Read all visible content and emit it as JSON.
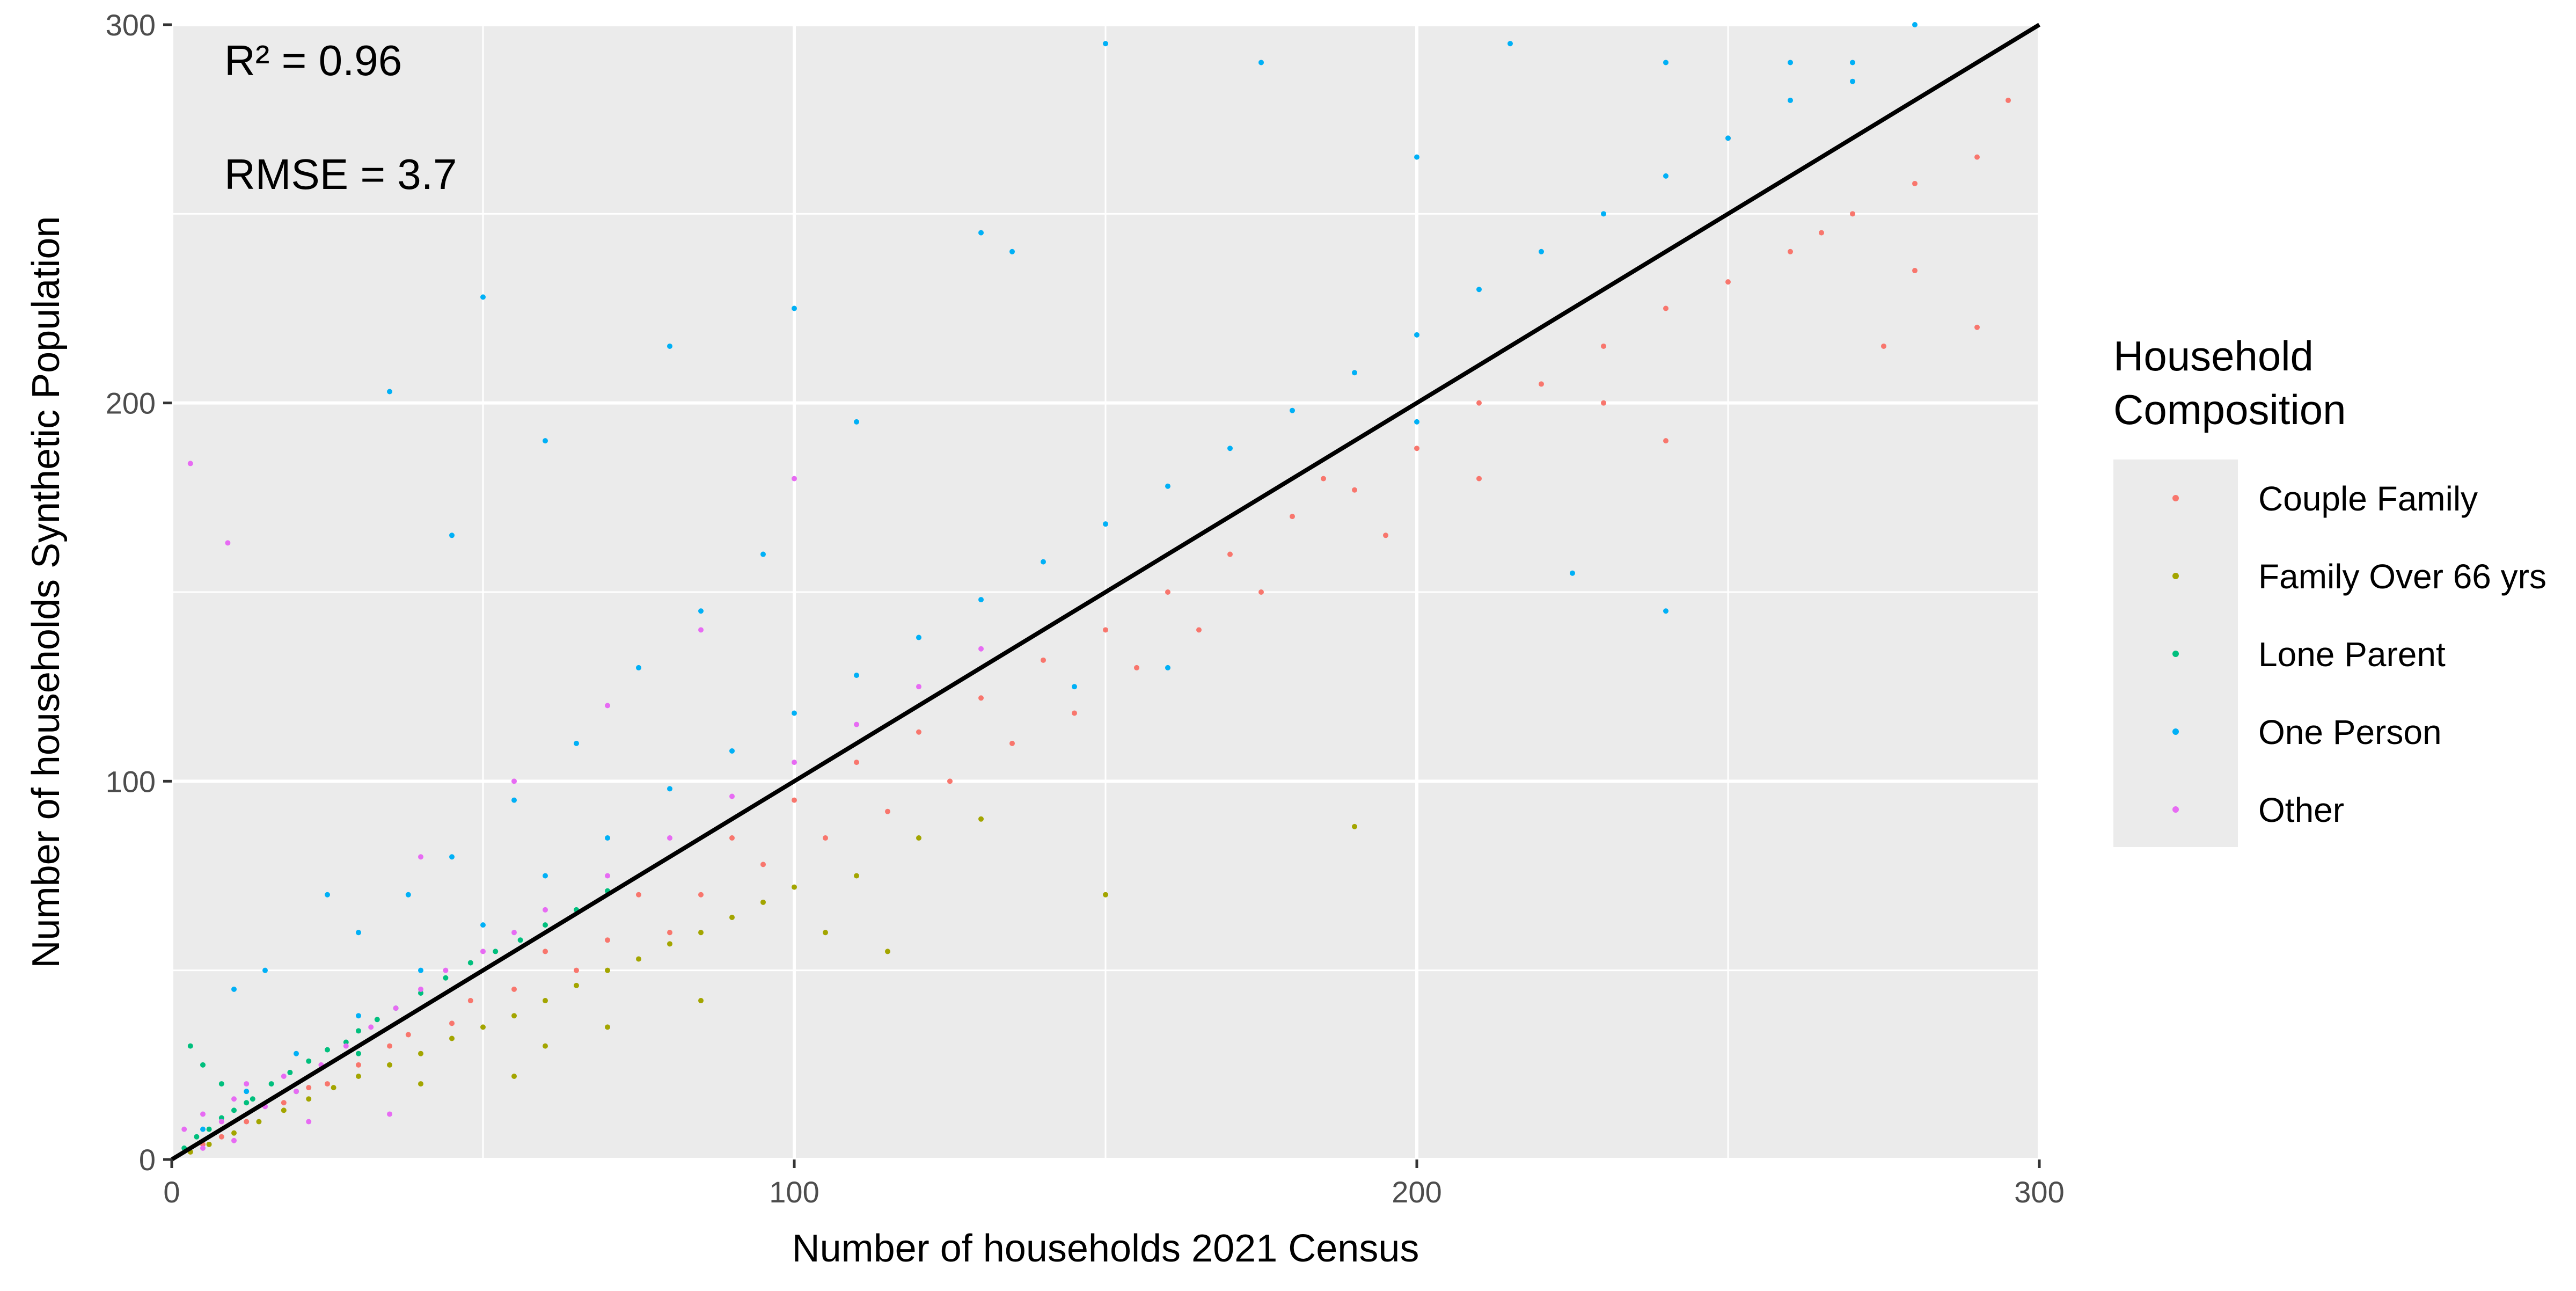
{
  "chart_data": {
    "type": "scatter",
    "xlabel": "Number of households 2021 Census",
    "ylabel": "Number of households Synthetic Population",
    "xlim": [
      0,
      300
    ],
    "ylim": [
      0,
      300
    ],
    "x_ticks": [
      0,
      100,
      200,
      300
    ],
    "y_ticks": [
      0,
      100,
      200,
      300
    ],
    "grid": true,
    "annotations": [
      "R² = 0.96",
      "RMSE = 3.7"
    ],
    "reference_line": {
      "from": [
        0,
        0
      ],
      "to": [
        300,
        300
      ],
      "color": "#000000"
    },
    "legend": {
      "title_lines": [
        "Household",
        "Composition"
      ],
      "position": "right"
    },
    "series": [
      {
        "name": "Couple Family",
        "color": "#F8766D",
        "points": [
          [
            5,
            4
          ],
          [
            12,
            10
          ],
          [
            22,
            19
          ],
          [
            35,
            30
          ],
          [
            48,
            42
          ],
          [
            60,
            55
          ],
          [
            75,
            70
          ],
          [
            90,
            85
          ],
          [
            100,
            95
          ],
          [
            110,
            105
          ],
          [
            120,
            113
          ],
          [
            130,
            122
          ],
          [
            140,
            132
          ],
          [
            150,
            140
          ],
          [
            160,
            150
          ],
          [
            170,
            160
          ],
          [
            180,
            170
          ],
          [
            190,
            177
          ],
          [
            200,
            188
          ],
          [
            210,
            200
          ],
          [
            220,
            205
          ],
          [
            230,
            215
          ],
          [
            240,
            225
          ],
          [
            250,
            232
          ],
          [
            260,
            240
          ],
          [
            270,
            250
          ],
          [
            280,
            258
          ],
          [
            290,
            265
          ],
          [
            295,
            280
          ],
          [
            290,
            220
          ],
          [
            280,
            235
          ],
          [
            250,
            270
          ],
          [
            265,
            245
          ],
          [
            275,
            215
          ],
          [
            240,
            190
          ],
          [
            230,
            200
          ],
          [
            210,
            180
          ],
          [
            195,
            165
          ],
          [
            185,
            180
          ],
          [
            175,
            150
          ],
          [
            165,
            140
          ],
          [
            155,
            130
          ],
          [
            145,
            118
          ],
          [
            135,
            110
          ],
          [
            125,
            100
          ],
          [
            115,
            92
          ],
          [
            105,
            85
          ],
          [
            95,
            78
          ],
          [
            85,
            70
          ],
          [
            80,
            60
          ],
          [
            70,
            58
          ],
          [
            65,
            50
          ],
          [
            55,
            45
          ],
          [
            45,
            36
          ],
          [
            38,
            33
          ],
          [
            30,
            25
          ],
          [
            25,
            20
          ],
          [
            18,
            15
          ],
          [
            8,
            6
          ],
          [
            3,
            2
          ]
        ]
      },
      {
        "name": "Family Over 66 yrs",
        "color": "#A3A500",
        "points": [
          [
            3,
            2
          ],
          [
            6,
            4
          ],
          [
            10,
            7
          ],
          [
            14,
            10
          ],
          [
            18,
            13
          ],
          [
            22,
            16
          ],
          [
            26,
            19
          ],
          [
            30,
            22
          ],
          [
            35,
            25
          ],
          [
            40,
            28
          ],
          [
            45,
            32
          ],
          [
            50,
            35
          ],
          [
            55,
            38
          ],
          [
            60,
            42
          ],
          [
            65,
            46
          ],
          [
            70,
            50
          ],
          [
            75,
            53
          ],
          [
            80,
            57
          ],
          [
            85,
            60
          ],
          [
            90,
            64
          ],
          [
            95,
            68
          ],
          [
            100,
            72
          ],
          [
            110,
            75
          ],
          [
            120,
            85
          ],
          [
            130,
            90
          ],
          [
            150,
            70
          ],
          [
            190,
            88
          ],
          [
            40,
            20
          ],
          [
            55,
            22
          ],
          [
            70,
            35
          ],
          [
            85,
            42
          ],
          [
            105,
            60
          ],
          [
            115,
            55
          ],
          [
            60,
            30
          ]
        ]
      },
      {
        "name": "Lone Parent",
        "color": "#00BF7D",
        "points": [
          [
            2,
            3
          ],
          [
            4,
            6
          ],
          [
            6,
            8
          ],
          [
            8,
            11
          ],
          [
            10,
            13
          ],
          [
            13,
            16
          ],
          [
            16,
            20
          ],
          [
            19,
            23
          ],
          [
            22,
            26
          ],
          [
            25,
            29
          ],
          [
            28,
            31
          ],
          [
            30,
            34
          ],
          [
            33,
            37
          ],
          [
            36,
            40
          ],
          [
            40,
            44
          ],
          [
            44,
            48
          ],
          [
            48,
            52
          ],
          [
            52,
            55
          ],
          [
            56,
            58
          ],
          [
            60,
            62
          ],
          [
            65,
            66
          ],
          [
            70,
            71
          ],
          [
            3,
            30
          ],
          [
            5,
            25
          ],
          [
            8,
            20
          ],
          [
            12,
            15
          ],
          [
            20,
            18
          ],
          [
            30,
            28
          ]
        ]
      },
      {
        "name": "One Person",
        "color": "#00B0F6",
        "points": [
          [
            5,
            8
          ],
          [
            12,
            18
          ],
          [
            20,
            28
          ],
          [
            30,
            38
          ],
          [
            40,
            50
          ],
          [
            50,
            62
          ],
          [
            60,
            75
          ],
          [
            70,
            85
          ],
          [
            80,
            98
          ],
          [
            90,
            108
          ],
          [
            100,
            118
          ],
          [
            110,
            128
          ],
          [
            120,
            138
          ],
          [
            130,
            148
          ],
          [
            140,
            158
          ],
          [
            150,
            168
          ],
          [
            160,
            178
          ],
          [
            170,
            188
          ],
          [
            180,
            198
          ],
          [
            190,
            208
          ],
          [
            200,
            218
          ],
          [
            210,
            230
          ],
          [
            220,
            240
          ],
          [
            230,
            250
          ],
          [
            240,
            260
          ],
          [
            250,
            270
          ],
          [
            260,
            280
          ],
          [
            270,
            290
          ],
          [
            280,
            300
          ],
          [
            35,
            203
          ],
          [
            50,
            228
          ],
          [
            45,
            165
          ],
          [
            60,
            190
          ],
          [
            80,
            215
          ],
          [
            100,
            225
          ],
          [
            130,
            245
          ],
          [
            150,
            295
          ],
          [
            175,
            290
          ],
          [
            200,
            265
          ],
          [
            215,
            295
          ],
          [
            240,
            290
          ],
          [
            260,
            290
          ],
          [
            270,
            285
          ],
          [
            145,
            125
          ],
          [
            160,
            130
          ],
          [
            200,
            195
          ],
          [
            225,
            155
          ],
          [
            240,
            145
          ],
          [
            30,
            60
          ],
          [
            25,
            70
          ],
          [
            15,
            50
          ],
          [
            10,
            45
          ],
          [
            135,
            240
          ],
          [
            110,
            195
          ],
          [
            95,
            160
          ],
          [
            85,
            145
          ],
          [
            75,
            130
          ],
          [
            65,
            110
          ],
          [
            55,
            95
          ],
          [
            45,
            80
          ],
          [
            38,
            70
          ]
        ]
      },
      {
        "name": "Other",
        "color": "#E76BF3",
        "points": [
          [
            2,
            8
          ],
          [
            5,
            12
          ],
          [
            8,
            10
          ],
          [
            10,
            16
          ],
          [
            12,
            20
          ],
          [
            15,
            14
          ],
          [
            18,
            22
          ],
          [
            20,
            18
          ],
          [
            24,
            25
          ],
          [
            28,
            30
          ],
          [
            32,
            35
          ],
          [
            36,
            40
          ],
          [
            40,
            45
          ],
          [
            44,
            50
          ],
          [
            50,
            55
          ],
          [
            55,
            60
          ],
          [
            60,
            66
          ],
          [
            70,
            75
          ],
          [
            80,
            85
          ],
          [
            90,
            96
          ],
          [
            100,
            105
          ],
          [
            110,
            115
          ],
          [
            120,
            125
          ],
          [
            130,
            135
          ],
          [
            3,
            184
          ],
          [
            9,
            163
          ],
          [
            40,
            80
          ],
          [
            55,
            100
          ],
          [
            70,
            120
          ],
          [
            85,
            140
          ],
          [
            100,
            180
          ],
          [
            5,
            3
          ],
          [
            10,
            5
          ],
          [
            22,
            10
          ],
          [
            35,
            12
          ]
        ]
      }
    ]
  }
}
